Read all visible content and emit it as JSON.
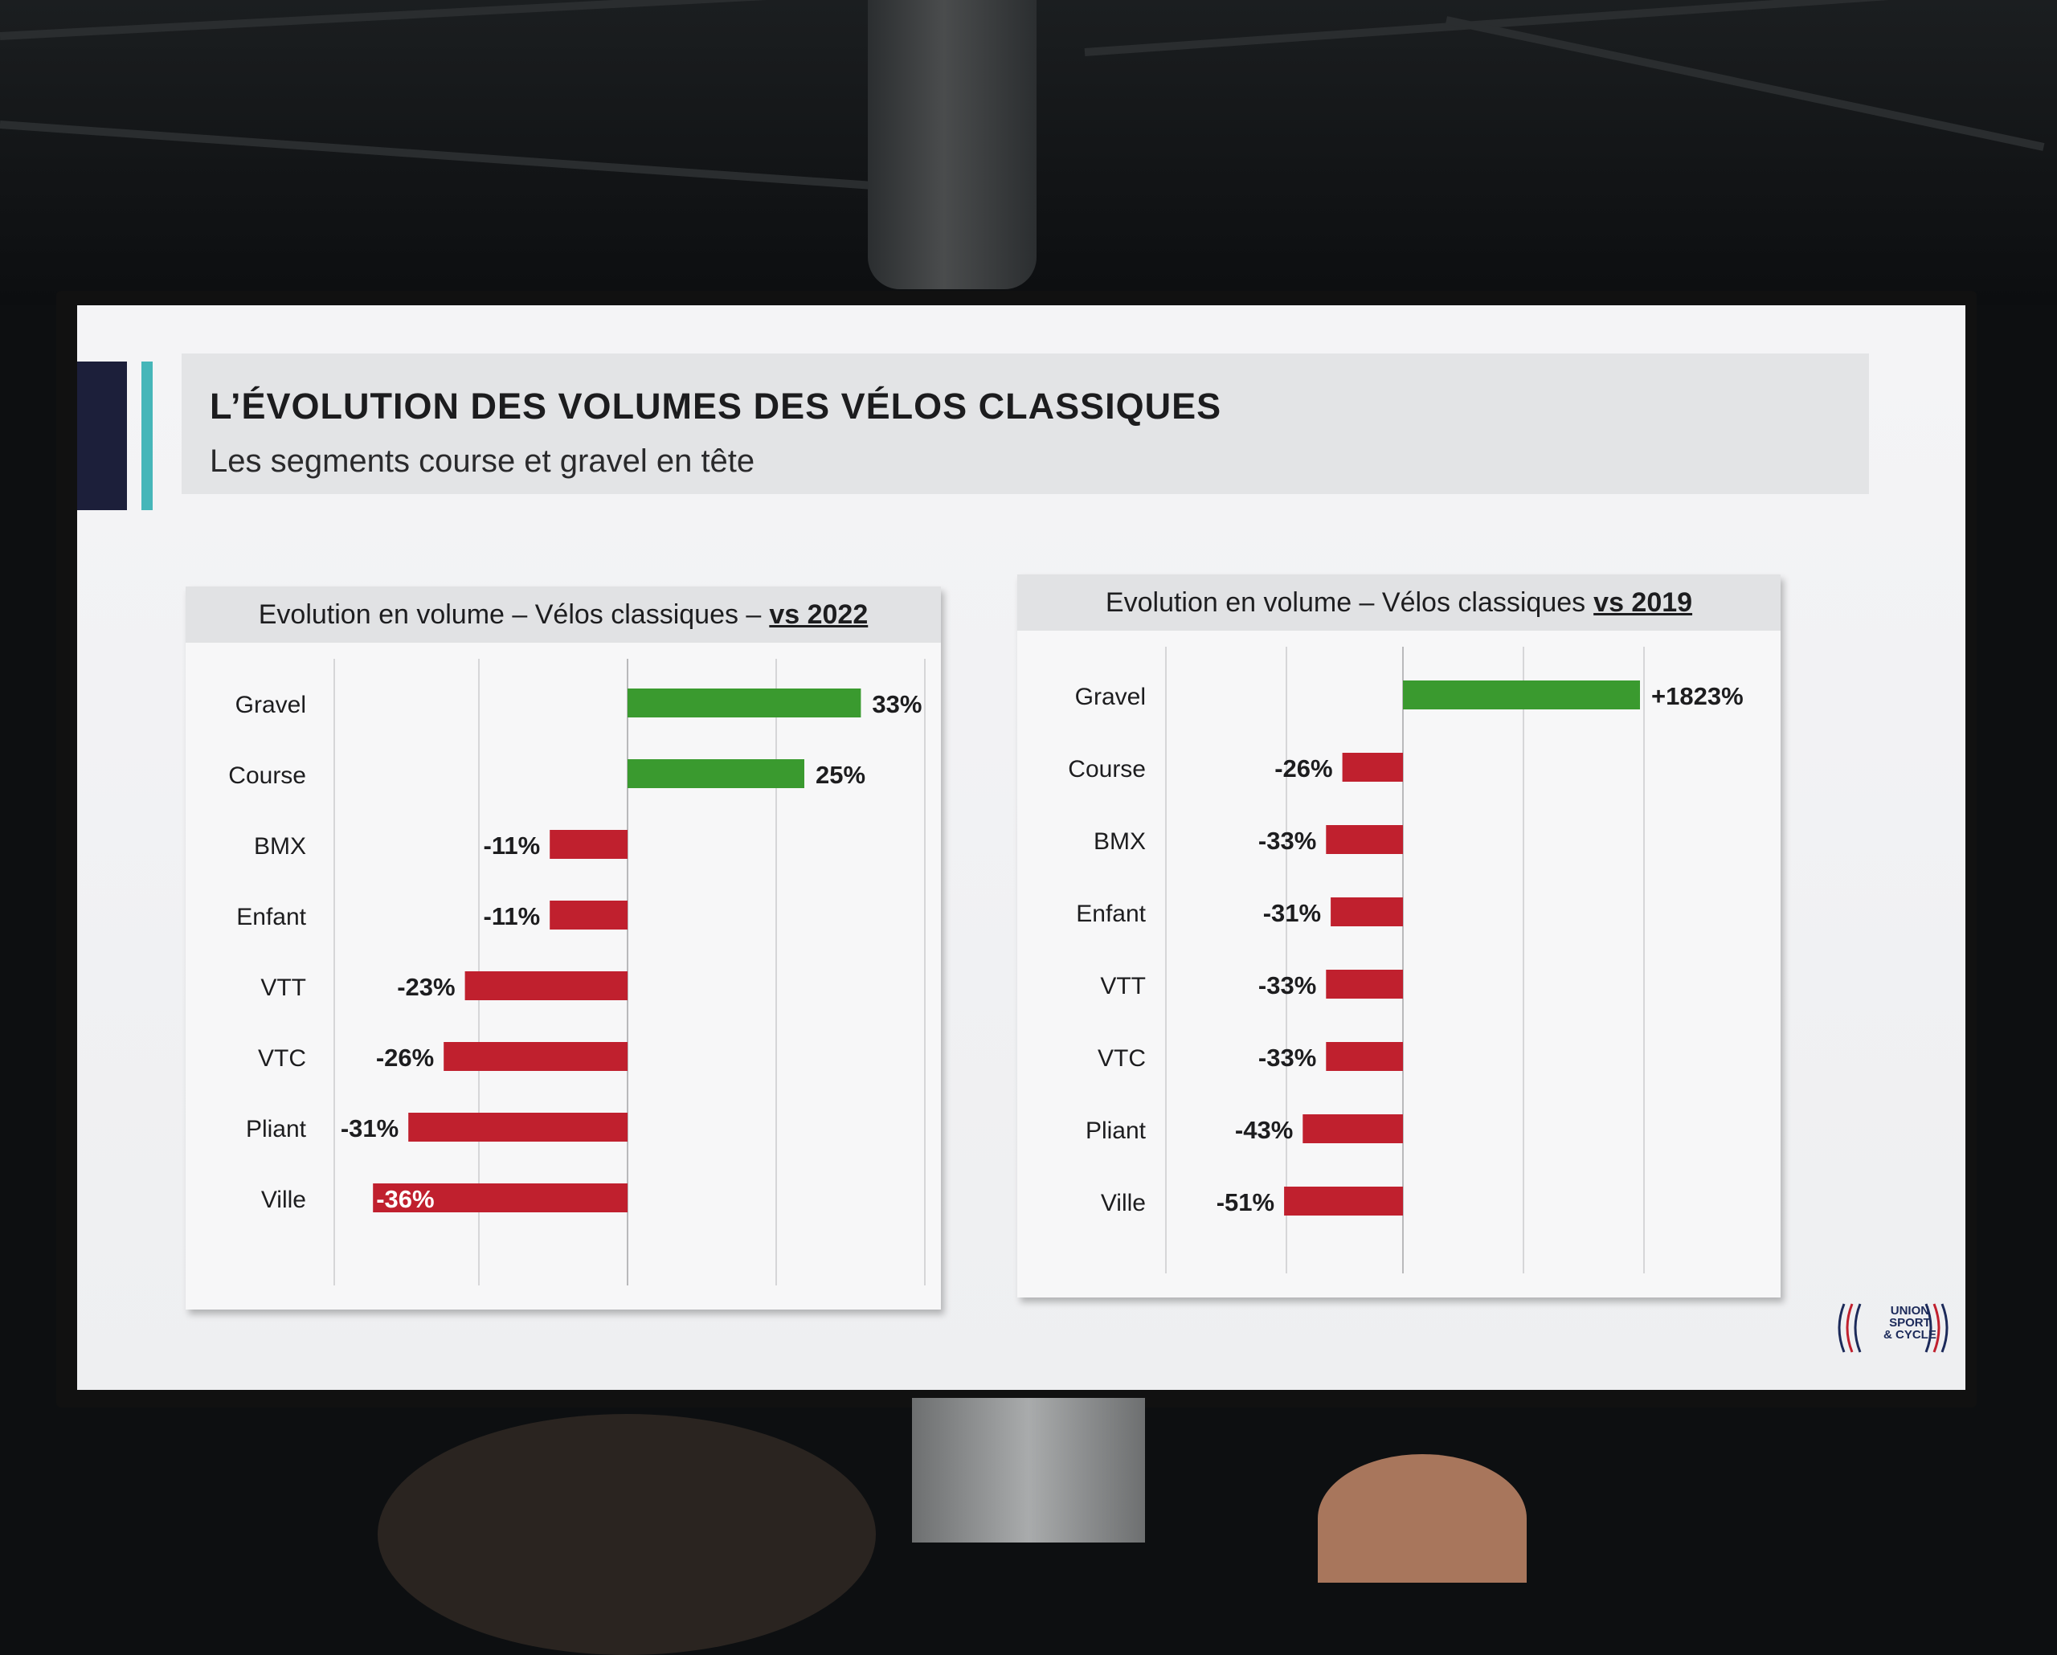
{
  "slide": {
    "title": "L’ÉVOLUTION DES VOLUMES DES VÉLOS CLASSIQUES",
    "subtitle": "Les segments course et gravel en tête"
  },
  "logo": {
    "line1": "UNION",
    "line2": "SPORT",
    "line3": "& CYCLE"
  },
  "colors": {
    "positive": "#3a9a2f",
    "negative": "#c0202e",
    "grid": "#d6d6d8"
  },
  "chart_data": [
    {
      "type": "bar",
      "orientation": "horizontal",
      "title": "Evolution en volume – Vélos classiques –",
      "title_emphasis": "vs 2022",
      "categories": [
        "Gravel",
        "Course",
        "BMX",
        "Enfant",
        "VTT",
        "VTC",
        "Pliant",
        "Ville"
      ],
      "values": [
        33,
        25,
        -11,
        -11,
        -23,
        -26,
        -31,
        -36
      ],
      "labels": [
        "33%",
        "25%",
        "-11%",
        "-11%",
        "-23%",
        "-26%",
        "-31%",
        "-36%"
      ],
      "xlim": [
        -40,
        40
      ],
      "grid": true,
      "legend": "none"
    },
    {
      "type": "bar",
      "orientation": "horizontal",
      "title": "Evolution en volume – Vélos classiques",
      "title_emphasis": "vs 2019",
      "categories": [
        "Gravel",
        "Course",
        "BMX",
        "Enfant",
        "VTT",
        "VTC",
        "Pliant",
        "Ville"
      ],
      "values": [
        1823,
        -26,
        -33,
        -31,
        -33,
        -33,
        -43,
        -51
      ],
      "labels": [
        "+1823%",
        "-26%",
        "-33%",
        "-31%",
        "-33%",
        "-33%",
        "-43%",
        "-51%"
      ],
      "scale": "broken",
      "grid": true,
      "legend": "none"
    }
  ]
}
